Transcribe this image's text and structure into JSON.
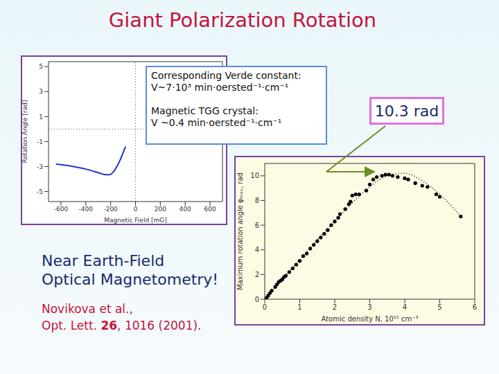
{
  "title": "Giant Polarization Rotation",
  "headline": [
    "Near Earth-Field",
    "Optical Magnetometry!"
  ],
  "citation": {
    "line1": "Novikova et al.,",
    "line2": [
      "Opt. Lett.",
      "26",
      ", 1016 (2001)."
    ]
  },
  "verde_box": [
    [
      "Corresponding Verde constant:",
      "V~7·10³ min·oersted⁻¹·cm⁻¹"
    ],
    [
      "Magnetic TGG crystal:",
      "V ~0.4 min·oersted⁻¹·cm⁻¹"
    ]
  ],
  "chart_data": [
    {
      "type": "line",
      "x_label": "Magnetic Field [mG]",
      "y_label": "Rotation Angle [rad]",
      "x": [
        -640,
        -600,
        -500,
        -400,
        -330,
        -280,
        -240,
        -210,
        -180,
        -150,
        -120,
        -100,
        -80
      ],
      "values": [
        -2.8,
        -2.85,
        -3.0,
        -3.2,
        -3.4,
        -3.55,
        -3.65,
        -3.65,
        -3.45,
        -3.0,
        -2.4,
        -1.9,
        -1.4
      ],
      "color": "#2233cc",
      "xlim": [
        -700,
        700
      ],
      "xticks": [
        -600,
        -400,
        -200,
        0,
        200,
        400,
        600
      ],
      "ylim": [
        -5.8,
        5.4
      ],
      "yticks": [
        -5,
        -3,
        -1,
        1,
        3,
        5
      ],
      "reference_lines": {
        "x": [
          0
        ],
        "y": [
          0
        ]
      },
      "line_style": "dotted"
    },
    {
      "type": "scatter",
      "x_label": "Atomic density N, 10¹² cm⁻³",
      "y_label": "Maximum rotation angle φₘₐₓ, rad",
      "annotation": "10.3 rad",
      "xlim": [
        0,
        6
      ],
      "xticks": [
        0,
        1,
        2,
        3,
        4,
        5,
        6
      ],
      "ylim": [
        0,
        11
      ],
      "yticks": [
        0,
        2,
        4,
        6,
        8,
        10
      ],
      "series": [
        {
          "type": "scatter",
          "color": "#000000",
          "marker": "circle",
          "x": [
            0,
            0.05,
            0.1,
            0.15,
            0.2,
            0.3,
            0.35,
            0.4,
            0.45,
            0.5,
            0.55,
            0.6,
            0.7,
            0.8,
            0.9,
            1.0,
            1.1,
            1.2,
            1.3,
            1.4,
            1.5,
            1.6,
            1.7,
            1.8,
            1.9,
            2.0,
            2.1,
            2.15,
            2.3,
            2.4,
            2.45,
            2.5,
            2.6,
            2.7,
            2.9,
            3.0,
            3.1,
            3.2,
            3.35,
            3.45,
            3.55,
            3.65,
            3.8,
            4.0,
            4.1,
            4.3,
            4.5,
            4.65,
            4.9,
            5.0,
            5.6
          ],
          "values": [
            0,
            0.1,
            0.3,
            0.5,
            0.7,
            1.0,
            1.2,
            1.4,
            1.5,
            1.6,
            1.8,
            1.9,
            2.2,
            2.5,
            2.8,
            3.1,
            3.5,
            3.7,
            4.1,
            4.4,
            4.7,
            5.0,
            5.3,
            5.6,
            6.0,
            6.3,
            6.6,
            6.9,
            7.3,
            7.7,
            7.9,
            8.4,
            8.5,
            8.5,
            8.8,
            9.3,
            9.7,
            9.9,
            10.0,
            10.1,
            10.1,
            10.0,
            9.9,
            9.8,
            9.7,
            9.4,
            9.2,
            9.1,
            8.5,
            8.3,
            6.7
          ]
        },
        {
          "type": "line",
          "color": "#000000",
          "line_style": "dotted",
          "x": [
            0,
            0.5,
            1,
            1.5,
            2,
            2.5,
            3,
            3.5,
            4,
            4.5,
            5,
            5.6
          ],
          "values": [
            0,
            1.6,
            3.2,
            4.8,
            6.3,
            7.8,
            9.1,
            10.0,
            10.2,
            9.6,
            8.5,
            6.7
          ]
        }
      ]
    }
  ]
}
